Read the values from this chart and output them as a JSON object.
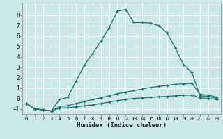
{
  "title": "",
  "xlabel": "Humidex (Indice chaleur)",
  "ylabel": "",
  "background_color": "#cce8e8",
  "line_color": "#1a6e6a",
  "grid_color": "#ffffff",
  "xlim": [
    -0.5,
    23.5
  ],
  "ylim": [
    -1.5,
    9.2
  ],
  "xticks": [
    0,
    1,
    2,
    3,
    4,
    5,
    6,
    7,
    8,
    9,
    10,
    11,
    12,
    13,
    14,
    15,
    16,
    17,
    18,
    19,
    20,
    21,
    22,
    23
  ],
  "yticks": [
    -1,
    0,
    1,
    2,
    3,
    4,
    5,
    6,
    7,
    8
  ],
  "series": [
    {
      "x": [
        0,
        1,
        2,
        3,
        4,
        5,
        6,
        7,
        8,
        9,
        10,
        11,
        12,
        13,
        14,
        15,
        16,
        17,
        18,
        19,
        20,
        21,
        22,
        23
      ],
      "y": [
        -0.5,
        -1.0,
        -1.1,
        -1.2,
        -0.1,
        0.1,
        1.65,
        3.2,
        4.3,
        5.5,
        6.8,
        8.4,
        8.55,
        7.3,
        7.3,
        7.25,
        7.0,
        6.3,
        4.85,
        3.25,
        2.5,
        0.25,
        0.2,
        0.0
      ]
    },
    {
      "x": [
        0,
        1,
        2,
        3,
        4,
        5,
        6,
        7,
        8,
        9,
        10,
        11,
        12,
        13,
        14,
        15,
        16,
        17,
        18,
        19,
        20,
        21,
        22,
        23
      ],
      "y": [
        -0.5,
        -1.0,
        -1.1,
        -1.2,
        -0.8,
        -0.7,
        -0.5,
        -0.3,
        -0.1,
        0.05,
        0.25,
        0.45,
        0.6,
        0.75,
        0.9,
        1.05,
        1.15,
        1.25,
        1.35,
        1.4,
        1.45,
        0.38,
        0.32,
        0.12
      ]
    },
    {
      "x": [
        0,
        1,
        2,
        3,
        4,
        5,
        6,
        7,
        8,
        9,
        10,
        11,
        12,
        13,
        14,
        15,
        16,
        17,
        18,
        19,
        20,
        21,
        22,
        23
      ],
      "y": [
        -0.5,
        -1.0,
        -1.1,
        -1.2,
        -0.95,
        -0.9,
        -0.82,
        -0.72,
        -0.62,
        -0.5,
        -0.35,
        -0.22,
        -0.1,
        0.0,
        0.05,
        0.1,
        0.15,
        0.2,
        0.25,
        0.3,
        0.32,
        0.05,
        0.0,
        -0.1
      ]
    }
  ]
}
